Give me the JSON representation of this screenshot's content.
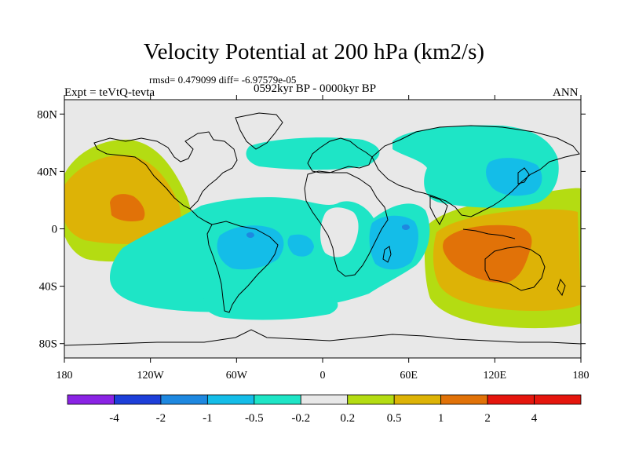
{
  "title": "Velocity Potential at 200 hPa (km2/s)",
  "stats": "rmsd= 0.479099 diff= -6.97579e-05",
  "experiment": "Expt = teVtQ-tevta",
  "period": "0592kyr BP - 0000kyr BP",
  "season": "ANN",
  "map": {
    "projection": "cylindrical-equidistant",
    "lon_range": [
      -180,
      180
    ],
    "lat_range": [
      -90,
      90
    ],
    "lat_labels": [
      {
        "lat": 80,
        "text": "80N"
      },
      {
        "lat": 40,
        "text": "40N"
      },
      {
        "lat": 0,
        "text": "0"
      },
      {
        "lat": -40,
        "text": "40S"
      },
      {
        "lat": -80,
        "text": "80S"
      }
    ],
    "lon_labels": [
      {
        "lon": -180,
        "text": "180"
      },
      {
        "lon": -120,
        "text": "120W"
      },
      {
        "lon": -60,
        "text": "60W"
      },
      {
        "lon": 0,
        "text": "0"
      },
      {
        "lon": 60,
        "text": "60E"
      },
      {
        "lon": 120,
        "text": "120E"
      },
      {
        "lon": 180,
        "text": "180"
      }
    ],
    "background_color": "#e8e8e8",
    "coastline_color": "#000000"
  },
  "colorbar": {
    "labels": [
      "-4",
      "-2",
      "-1",
      "-0.5",
      "-0.2",
      "0.2",
      "0.5",
      "1",
      "2",
      "4"
    ],
    "colors": [
      "#8a23e4",
      "#1d3fd9",
      "#1e88e0",
      "#14bde8",
      "#1ee5c6",
      "#e8e8e8",
      "#b4dc12",
      "#ddb306",
      "#e17208",
      "#e5160d"
    ]
  },
  "fields": {
    "colors": {
      "neg_02": "#1ee5c6",
      "neg_05": "#14bde8",
      "neg_1": "#1e88e0",
      "pos_02": "#b4dc12",
      "pos_05": "#ddb306",
      "pos_1": "#e17208"
    }
  }
}
